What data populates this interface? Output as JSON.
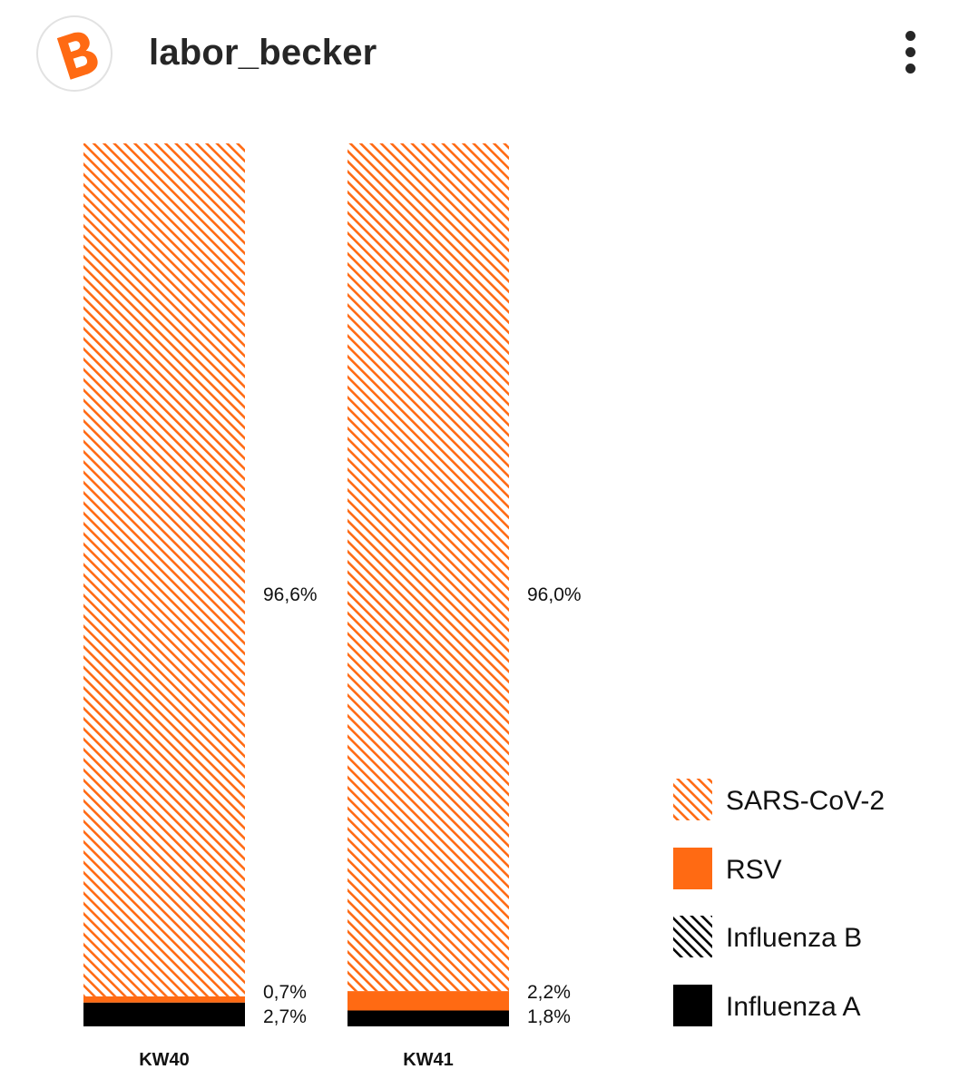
{
  "header": {
    "avatar_letter": "B",
    "username": "labor_becker",
    "avatar_icon": "letter-b-logo-icon",
    "more_icon": "more-vertical-icon"
  },
  "colors": {
    "orange": "#ff6a13",
    "black": "#000000",
    "text": "#262626"
  },
  "chart_data": {
    "type": "bar",
    "stacked": true,
    "percent_stacked": true,
    "categories": [
      "KW40",
      "KW41"
    ],
    "series": [
      {
        "name": "Influenza A",
        "values": [
          2.7,
          1.8
        ],
        "labels": [
          "2,7%",
          "1,8%"
        ],
        "color": "#000000",
        "pattern": "solid"
      },
      {
        "name": "Influenza B",
        "values": [
          0.0,
          0.0
        ],
        "labels": [
          "",
          ""
        ],
        "color": "#000000",
        "pattern": "hatched"
      },
      {
        "name": "RSV",
        "values": [
          0.7,
          2.2
        ],
        "labels": [
          "0,7%",
          "2,2%"
        ],
        "color": "#ff6a13",
        "pattern": "solid"
      },
      {
        "name": "SARS-CoV-2",
        "values": [
          96.6,
          96.0
        ],
        "labels": [
          "96,6%",
          "96,0%"
        ],
        "color": "#ff6a13",
        "pattern": "hatched"
      }
    ],
    "legend": {
      "placement": "bottom-right",
      "order": [
        "SARS-CoV-2",
        "RSV",
        "Influenza B",
        "Influenza A"
      ]
    },
    "ylim": [
      0,
      100
    ],
    "grid": false
  }
}
